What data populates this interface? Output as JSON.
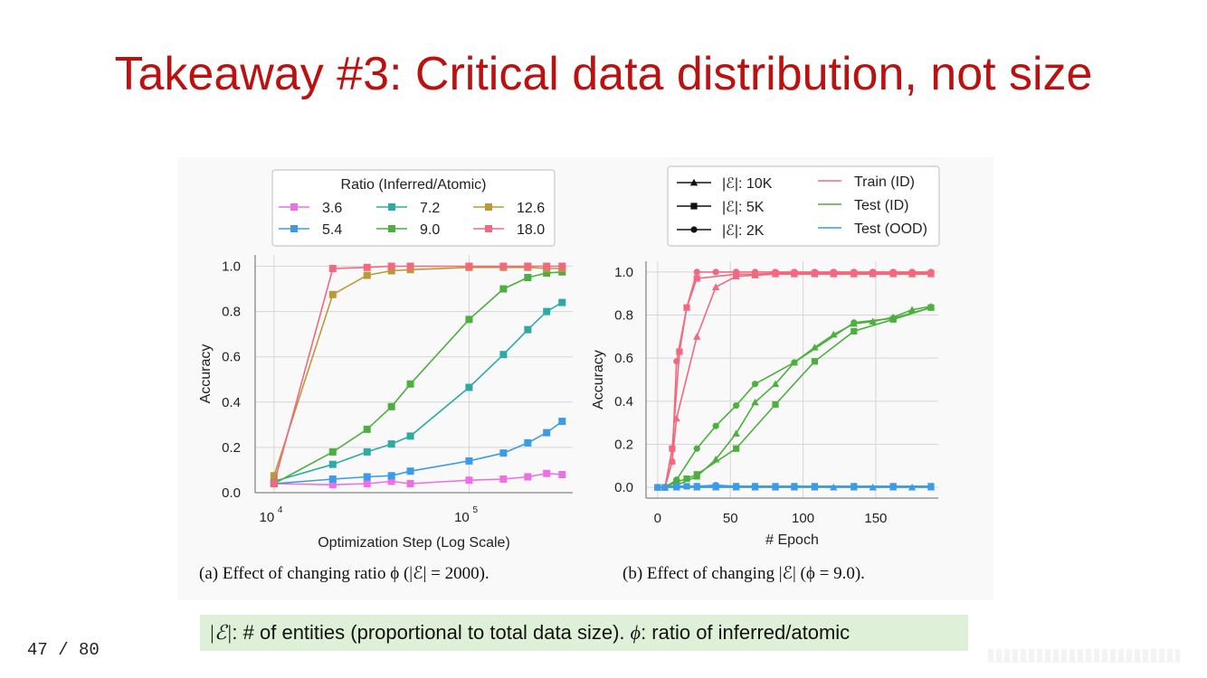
{
  "slide": {
    "title": "Takeaway #3: Critical data distribution, not size",
    "page": "47 / 80",
    "note": {
      "sym_e": "|ℰ|",
      "text_e": ": # of entities (proportional to total data size).  ",
      "sym_phi": "ϕ",
      "text_phi": ": ratio of inferred/atomic"
    }
  },
  "captions": {
    "a": "(a) Effect of changing ratio ϕ (|ℰ| = 2000).",
    "b": "(b) Effect of changing |ℰ| (ϕ = 9.0)."
  },
  "colors": {
    "pink": "#ee6ee4",
    "blue": "#3c9be6",
    "teal": "#2eaaa4",
    "green": "#4caf3e",
    "gold": "#bb9a36",
    "rose": "#f2687f",
    "grid": "#d6d6d6",
    "background": "#f9f9fa"
  },
  "chart_data": [
    {
      "type": "line",
      "xlabel": "Optimization Step (Log Scale)",
      "ylabel": "Accuracy",
      "x_scale": "log",
      "xlim": [
        8000,
        340000
      ],
      "ylim": [
        0,
        1.05
      ],
      "x_ticks": [
        {
          "value": 10000,
          "base": "10",
          "exp": "4"
        },
        {
          "value": 100000,
          "base": "10",
          "exp": "5"
        }
      ],
      "y_ticks": [
        "0.0",
        "0.2",
        "0.4",
        "0.6",
        "0.8",
        "1.0"
      ],
      "legend": {
        "title": "Ratio (Inferred/Atomic)",
        "placement": "top",
        "columns": 3
      },
      "marker": "square",
      "grid": true,
      "series": [
        {
          "name": "3.6",
          "color": "pink",
          "x": [
            10000,
            20000,
            30000,
            40000,
            50000,
            100000,
            150000,
            200000,
            250000,
            300000
          ],
          "y": [
            0.04,
            0.035,
            0.04,
            0.05,
            0.04,
            0.055,
            0.06,
            0.07,
            0.085,
            0.08
          ]
        },
        {
          "name": "5.4",
          "color": "blue",
          "x": [
            10000,
            20000,
            30000,
            40000,
            50000,
            100000,
            150000,
            200000,
            250000,
            300000
          ],
          "y": [
            0.04,
            0.06,
            0.07,
            0.075,
            0.095,
            0.14,
            0.175,
            0.22,
            0.265,
            0.315
          ]
        },
        {
          "name": "7.2",
          "color": "teal",
          "x": [
            10000,
            20000,
            30000,
            40000,
            50000,
            100000,
            150000,
            200000,
            250000,
            300000
          ],
          "y": [
            0.05,
            0.125,
            0.18,
            0.215,
            0.25,
            0.465,
            0.61,
            0.72,
            0.8,
            0.84
          ]
        },
        {
          "name": "9.0",
          "color": "green",
          "x": [
            10000,
            20000,
            30000,
            40000,
            50000,
            100000,
            150000,
            200000,
            250000,
            300000
          ],
          "y": [
            0.04,
            0.18,
            0.28,
            0.38,
            0.48,
            0.765,
            0.9,
            0.95,
            0.97,
            0.975
          ]
        },
        {
          "name": "12.6",
          "color": "gold",
          "x": [
            10000,
            20000,
            30000,
            40000,
            50000,
            100000,
            150000,
            200000,
            250000,
            300000
          ],
          "y": [
            0.075,
            0.875,
            0.96,
            0.98,
            0.985,
            0.995,
            0.995,
            0.995,
            0.99,
            0.99
          ]
        },
        {
          "name": "18.0",
          "color": "rose",
          "x": [
            10000,
            20000,
            30000,
            40000,
            50000,
            100000,
            150000,
            200000,
            250000,
            300000
          ],
          "y": [
            0.04,
            0.99,
            0.995,
            1.0,
            1.0,
            1.0,
            1.0,
            1.0,
            1.0,
            1.0
          ]
        }
      ]
    },
    {
      "type": "line",
      "xlabel": "# Epoch",
      "ylabel": "Accuracy",
      "xlim": [
        -8,
        193
      ],
      "ylim": [
        -0.05,
        1.05
      ],
      "x_ticks": [
        "0",
        "50",
        "100",
        "150"
      ],
      "x_tick_values": [
        0,
        50,
        100,
        150
      ],
      "y_ticks": [
        "0.0",
        "0.2",
        "0.4",
        "0.6",
        "0.8",
        "1.0"
      ],
      "grid": true,
      "legend": {
        "placement": "top-left",
        "markers": [
          {
            "marker": "triangle",
            "label": "|ℰ|: 10K"
          },
          {
            "marker": "square",
            "label": "|ℰ|: 5K"
          },
          {
            "marker": "circle",
            "label": "|ℰ|: 2K"
          }
        ],
        "lines": [
          {
            "color": "rose",
            "label": "Train (ID)"
          },
          {
            "color": "green",
            "label": "Test (ID)"
          },
          {
            "color": "blue",
            "label": "Test (OOD)"
          }
        ]
      },
      "series": [
        {
          "split": "Train (ID)",
          "size": "10K",
          "marker": "triangle",
          "color": "rose",
          "x": [
            0,
            5,
            10,
            13,
            27,
            40,
            54,
            67,
            81,
            94,
            108,
            121,
            135,
            148,
            162,
            175,
            188
          ],
          "y": [
            0,
            0,
            0.12,
            0.32,
            0.7,
            0.93,
            0.98,
            0.985,
            0.99,
            0.99,
            0.99,
            0.99,
            0.99,
            0.99,
            0.99,
            0.99,
            0.99
          ]
        },
        {
          "split": "Train (ID)",
          "size": "5K",
          "marker": "square",
          "color": "rose",
          "x": [
            0,
            5,
            10,
            15,
            20,
            27,
            54,
            67,
            81,
            94,
            108,
            121,
            135,
            148,
            162,
            175,
            188
          ],
          "y": [
            0,
            0,
            0.18,
            0.63,
            0.835,
            0.97,
            0.99,
            0.99,
            0.995,
            0.995,
            0.995,
            0.995,
            0.995,
            0.995,
            0.995,
            0.995,
            0.995
          ]
        },
        {
          "split": "Train (ID)",
          "size": "2K",
          "marker": "circle",
          "color": "rose",
          "x": [
            0,
            5,
            10,
            13,
            20,
            27,
            40,
            54,
            67,
            81,
            94,
            108,
            121,
            135,
            148,
            162,
            175,
            188
          ],
          "y": [
            0,
            0,
            0.12,
            0.585,
            0.835,
            1.0,
            1.0,
            1.0,
            1.0,
            1.0,
            1.0,
            1.0,
            1.0,
            1.0,
            1.0,
            1.0,
            1.0,
            1.0
          ]
        },
        {
          "split": "Test (ID)",
          "size": "10K",
          "marker": "triangle",
          "color": "green",
          "x": [
            0,
            5,
            13,
            27,
            40,
            54,
            67,
            81,
            94,
            108,
            121,
            135,
            148,
            162,
            175,
            188
          ],
          "y": [
            0,
            0,
            0.01,
            0.05,
            0.13,
            0.25,
            0.395,
            0.48,
            0.58,
            0.65,
            0.71,
            0.76,
            0.77,
            0.79,
            0.825,
            0.84
          ]
        },
        {
          "split": "Test (ID)",
          "size": "5K",
          "marker": "square",
          "color": "green",
          "x": [
            0,
            5,
            13,
            20,
            27,
            54,
            81,
            108,
            135,
            162,
            188
          ],
          "y": [
            0,
            0,
            0.025,
            0.04,
            0.06,
            0.18,
            0.385,
            0.585,
            0.725,
            0.78,
            0.835
          ]
        },
        {
          "split": "Test (ID)",
          "size": "2K",
          "marker": "circle",
          "color": "green",
          "x": [
            0,
            5,
            13,
            27,
            40,
            54,
            67,
            94,
            135,
            162,
            188
          ],
          "y": [
            0,
            0,
            0.035,
            0.18,
            0.285,
            0.38,
            0.48,
            0.58,
            0.765,
            0.785,
            0.835
          ]
        },
        {
          "split": "Test (OOD)",
          "size": "10K",
          "marker": "triangle",
          "color": "blue",
          "x": [
            0,
            5,
            13,
            27,
            40,
            54,
            67,
            81,
            94,
            108,
            121,
            135,
            148,
            162,
            175,
            188
          ],
          "y": [
            0,
            0,
            0,
            0,
            0,
            0,
            0,
            0,
            0,
            0,
            0,
            0,
            0,
            0,
            0,
            0
          ]
        },
        {
          "split": "Test (OOD)",
          "size": "5K",
          "marker": "square",
          "color": "blue",
          "x": [
            0,
            5,
            13,
            20,
            27,
            40,
            54,
            67,
            81,
            94,
            108,
            135,
            162,
            188
          ],
          "y": [
            0,
            0,
            0.005,
            0.005,
            0.005,
            0.005,
            0.005,
            0.005,
            0.005,
            0.005,
            0.005,
            0.005,
            0.005,
            0.005
          ]
        },
        {
          "split": "Test (OOD)",
          "size": "2K",
          "marker": "circle",
          "color": "blue",
          "x": [
            0,
            5,
            13,
            27,
            40,
            54,
            67,
            94,
            135,
            162,
            188
          ],
          "y": [
            0,
            0,
            0.005,
            0.005,
            0.01,
            0.005,
            0.005,
            0.005,
            0.005,
            0.005,
            0.005
          ]
        }
      ]
    }
  ]
}
